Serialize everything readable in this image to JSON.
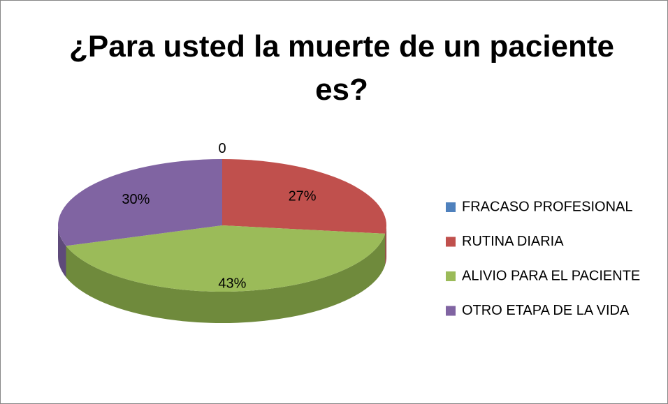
{
  "chart_data": {
    "type": "pie",
    "title": "¿Para usted la muerte de un paciente es?",
    "categories": [
      "FRACASO PROFESIONAL",
      "RUTINA DIARIA",
      "ALIVIO PARA EL PACIENTE",
      "OTRO ETAPA DE LA VIDA"
    ],
    "values": [
      0,
      27,
      43,
      30
    ],
    "value_labels": [
      "0",
      "27%",
      "43%",
      "30%"
    ],
    "colors": [
      "#4f81bd",
      "#c0504d",
      "#9bbb59",
      "#8064a2"
    ],
    "side_colors": [
      "#3a6190",
      "#8f3a38",
      "#6f8a3c",
      "#5e4a7a"
    ],
    "legend": "right"
  }
}
